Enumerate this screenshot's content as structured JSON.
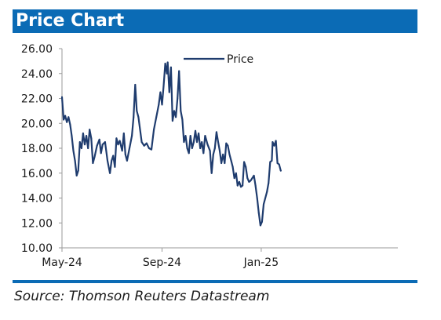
{
  "colors": {
    "title_bar": "#0b6bb5",
    "title_text": "#ffffff",
    "line": "#1f3c6e",
    "axis": "#9a9a9a",
    "text": "#1a1a1a",
    "rule": "#0b6bb5"
  },
  "header": {
    "title": "Price Chart"
  },
  "footer": {
    "source": "Source: Thomson Reuters Datastream"
  },
  "chart_data": {
    "type": "line",
    "title": "Price Chart",
    "xlabel": "",
    "ylabel": "",
    "ylim": [
      10,
      26
    ],
    "y_ticks": [
      "10.00",
      "12.00",
      "14.00",
      "16.00",
      "18.00",
      "20.00",
      "22.00",
      "24.00",
      "26.00"
    ],
    "x_ticks": [
      {
        "label": "May-24",
        "date": "2024-05-01"
      },
      {
        "label": "Sep-24",
        "date": "2024-09-01"
      },
      {
        "label": "Jan-25",
        "date": "2025-01-01"
      }
    ],
    "xlim": [
      "2024-05-01",
      "2025-06-18"
    ],
    "grid": false,
    "legend": {
      "position": "top-center",
      "entries": [
        "Price"
      ]
    },
    "series": [
      {
        "name": "Price",
        "points": [
          [
            "2024-05-01",
            22.1
          ],
          [
            "2024-05-03",
            20.3
          ],
          [
            "2024-05-05",
            20.6
          ],
          [
            "2024-05-07",
            20.1
          ],
          [
            "2024-05-09",
            20.5
          ],
          [
            "2024-05-11",
            19.9
          ],
          [
            "2024-05-13",
            19.0
          ],
          [
            "2024-05-15",
            17.8
          ],
          [
            "2024-05-17",
            17.0
          ],
          [
            "2024-05-19",
            15.8
          ],
          [
            "2024-05-21",
            16.2
          ],
          [
            "2024-05-23",
            18.5
          ],
          [
            "2024-05-25",
            18.0
          ],
          [
            "2024-05-27",
            19.2
          ],
          [
            "2024-05-29",
            18.3
          ],
          [
            "2024-05-31",
            19.0
          ],
          [
            "2024-06-02",
            18.0
          ],
          [
            "2024-06-04",
            19.5
          ],
          [
            "2024-06-06",
            18.8
          ],
          [
            "2024-06-08",
            16.8
          ],
          [
            "2024-06-10",
            17.3
          ],
          [
            "2024-06-13",
            18.2
          ],
          [
            "2024-06-16",
            18.7
          ],
          [
            "2024-06-18",
            17.6
          ],
          [
            "2024-06-20",
            18.3
          ],
          [
            "2024-06-23",
            18.5
          ],
          [
            "2024-06-26",
            17.0
          ],
          [
            "2024-06-29",
            16.0
          ],
          [
            "2024-07-01",
            17.0
          ],
          [
            "2024-07-03",
            17.4
          ],
          [
            "2024-07-05",
            16.5
          ],
          [
            "2024-07-07",
            18.8
          ],
          [
            "2024-07-09",
            18.3
          ],
          [
            "2024-07-11",
            18.6
          ],
          [
            "2024-07-14",
            17.8
          ],
          [
            "2024-07-16",
            19.2
          ],
          [
            "2024-07-18",
            17.5
          ],
          [
            "2024-07-20",
            17.0
          ],
          [
            "2024-07-23",
            18.0
          ],
          [
            "2024-07-26",
            19.0
          ],
          [
            "2024-07-28",
            20.5
          ],
          [
            "2024-07-30",
            23.1
          ],
          [
            "2024-08-01",
            21.0
          ],
          [
            "2024-08-03",
            20.5
          ],
          [
            "2024-08-05",
            19.5
          ],
          [
            "2024-08-07",
            18.5
          ],
          [
            "2024-08-10",
            18.2
          ],
          [
            "2024-08-13",
            18.4
          ],
          [
            "2024-08-16",
            18.0
          ],
          [
            "2024-08-19",
            17.9
          ],
          [
            "2024-08-22",
            19.5
          ],
          [
            "2024-08-25",
            20.5
          ],
          [
            "2024-08-28",
            21.5
          ],
          [
            "2024-08-30",
            22.5
          ],
          [
            "2024-09-01",
            21.5
          ],
          [
            "2024-09-03",
            23.0
          ],
          [
            "2024-09-05",
            24.8
          ],
          [
            "2024-09-07",
            24.0
          ],
          [
            "2024-09-08",
            24.9
          ],
          [
            "2024-09-10",
            22.5
          ],
          [
            "2024-09-12",
            24.5
          ],
          [
            "2024-09-14",
            20.2
          ],
          [
            "2024-09-16",
            21.0
          ],
          [
            "2024-09-18",
            20.5
          ],
          [
            "2024-09-20",
            22.0
          ],
          [
            "2024-09-22",
            24.2
          ],
          [
            "2024-09-24",
            21.0
          ],
          [
            "2024-09-26",
            20.3
          ],
          [
            "2024-09-28",
            18.5
          ],
          [
            "2024-09-30",
            19.0
          ],
          [
            "2024-10-02",
            18.0
          ],
          [
            "2024-10-04",
            17.6
          ],
          [
            "2024-10-06",
            19.0
          ],
          [
            "2024-10-08",
            18.0
          ],
          [
            "2024-10-10",
            18.5
          ],
          [
            "2024-10-12",
            19.4
          ],
          [
            "2024-10-14",
            18.5
          ],
          [
            "2024-10-16",
            19.2
          ],
          [
            "2024-10-18",
            18.0
          ],
          [
            "2024-10-20",
            18.5
          ],
          [
            "2024-10-22",
            17.6
          ],
          [
            "2024-10-24",
            19.0
          ],
          [
            "2024-10-27",
            18.3
          ],
          [
            "2024-10-30",
            17.8
          ],
          [
            "2024-11-01",
            16.0
          ],
          [
            "2024-11-03",
            17.5
          ],
          [
            "2024-11-05",
            18.0
          ],
          [
            "2024-11-07",
            19.3
          ],
          [
            "2024-11-09",
            18.5
          ],
          [
            "2024-11-11",
            17.8
          ],
          [
            "2024-11-13",
            16.8
          ],
          [
            "2024-11-15",
            17.5
          ],
          [
            "2024-11-17",
            16.8
          ],
          [
            "2024-11-19",
            18.4
          ],
          [
            "2024-11-21",
            18.2
          ],
          [
            "2024-11-23",
            17.5
          ],
          [
            "2024-11-25",
            17.0
          ],
          [
            "2024-11-27",
            16.5
          ],
          [
            "2024-11-29",
            15.6
          ],
          [
            "2024-12-01",
            16.0
          ],
          [
            "2024-12-03",
            15.0
          ],
          [
            "2024-12-05",
            15.3
          ],
          [
            "2024-12-07",
            14.9
          ],
          [
            "2024-12-09",
            15.0
          ],
          [
            "2024-12-11",
            16.9
          ],
          [
            "2024-12-13",
            16.5
          ],
          [
            "2024-12-15",
            15.6
          ],
          [
            "2024-12-17",
            15.3
          ],
          [
            "2024-12-19",
            15.4
          ],
          [
            "2024-12-21",
            15.6
          ],
          [
            "2024-12-23",
            15.8
          ],
          [
            "2024-12-25",
            15.0
          ],
          [
            "2024-12-27",
            14.0
          ],
          [
            "2024-12-29",
            12.8
          ],
          [
            "2024-12-31",
            11.8
          ],
          [
            "2025-01-02",
            12.1
          ],
          [
            "2025-01-04",
            13.5
          ],
          [
            "2025-01-06",
            14.0
          ],
          [
            "2025-01-08",
            14.5
          ],
          [
            "2025-01-10",
            15.2
          ],
          [
            "2025-01-12",
            16.9
          ],
          [
            "2025-01-14",
            17.0
          ],
          [
            "2025-01-15",
            18.5
          ],
          [
            "2025-01-17",
            18.2
          ],
          [
            "2025-01-19",
            18.6
          ],
          [
            "2025-01-21",
            16.8
          ],
          [
            "2025-01-23",
            16.7
          ],
          [
            "2025-01-25",
            16.2
          ]
        ]
      }
    ]
  }
}
